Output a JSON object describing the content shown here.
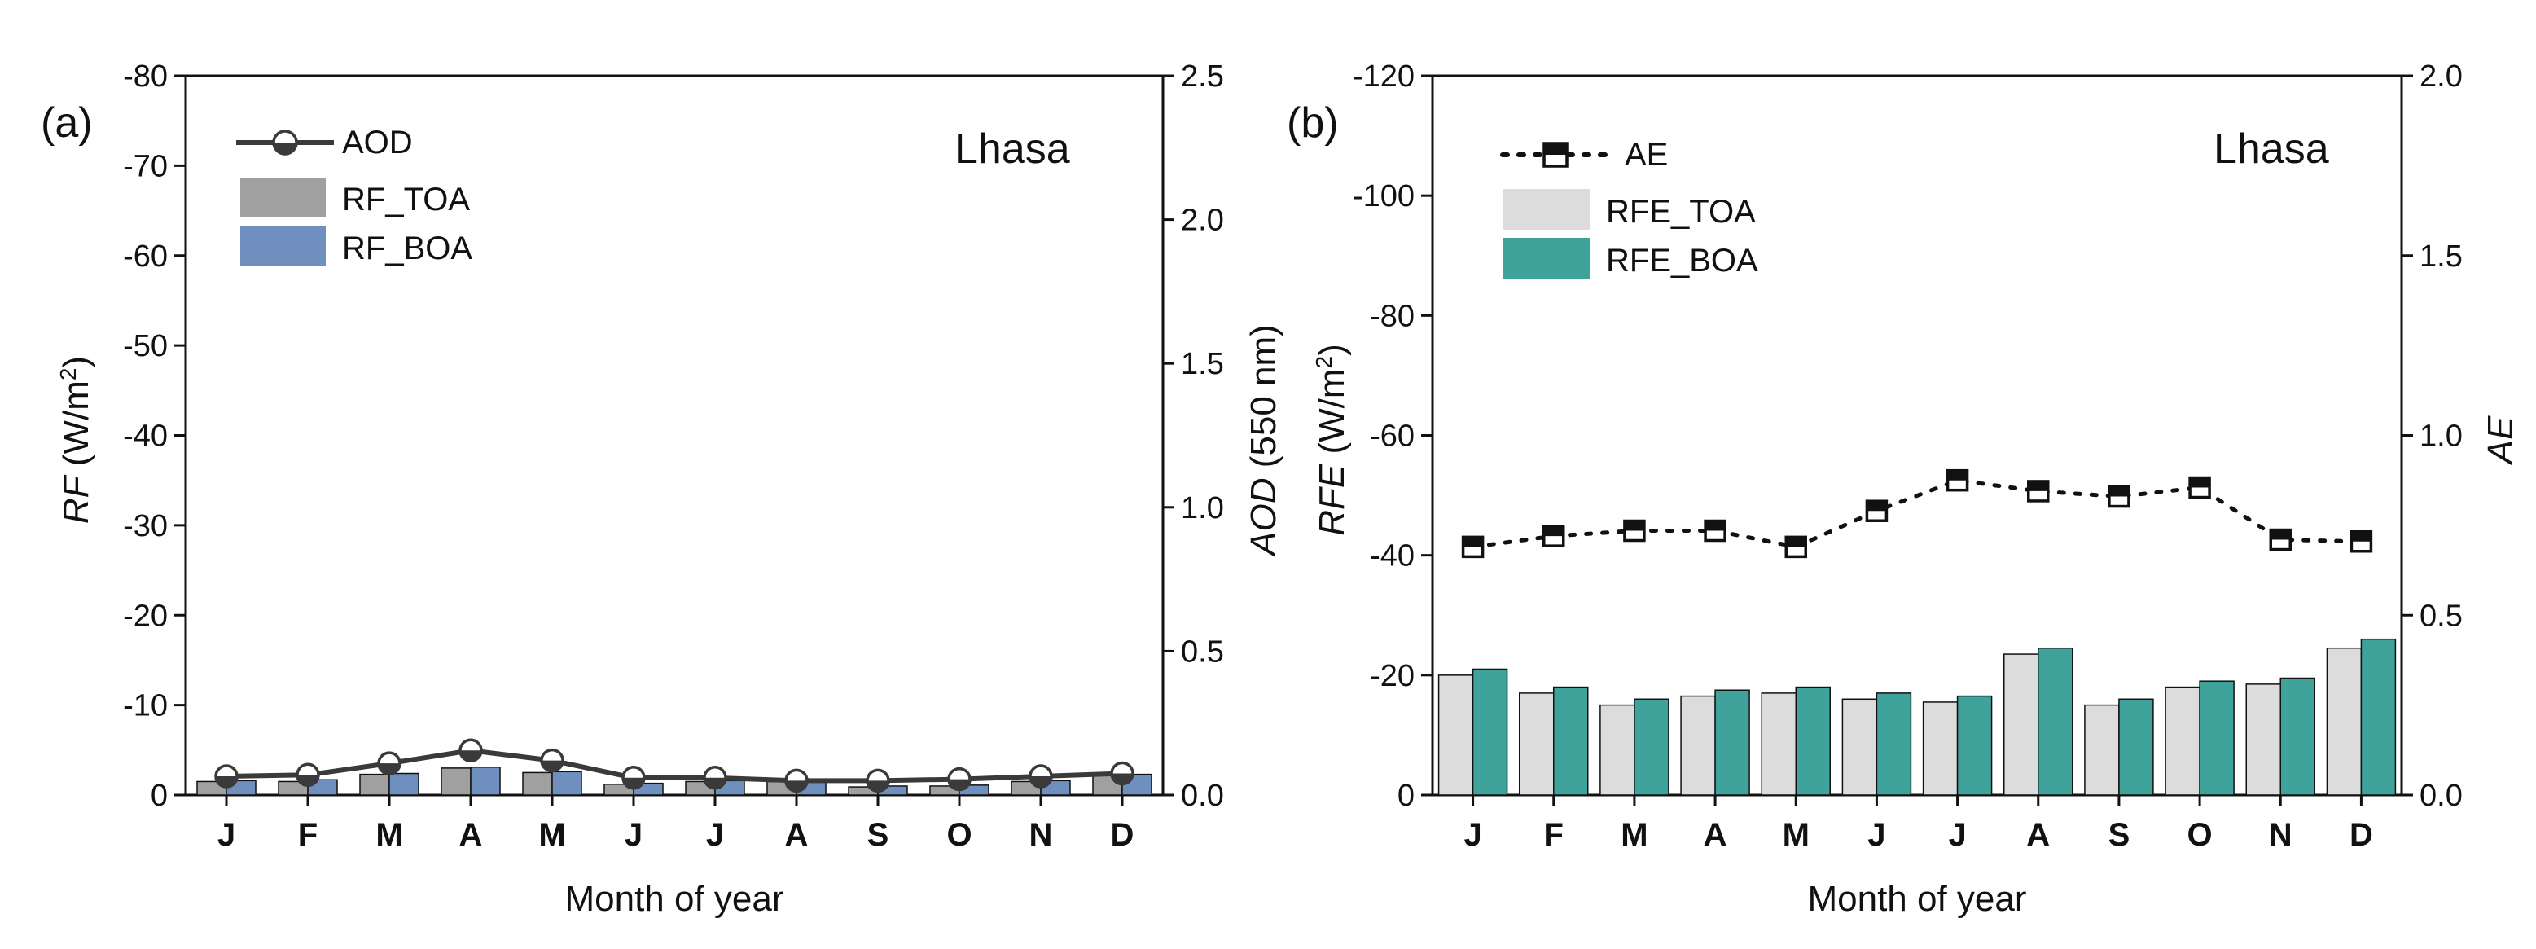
{
  "chart_data": [
    {
      "type": "bar",
      "panel_label": "(a)",
      "site": "Lhasa",
      "categories": [
        "J",
        "F",
        "M",
        "A",
        "M",
        "J",
        "J",
        "A",
        "S",
        "O",
        "N",
        "D"
      ],
      "xlabel": "Month of year",
      "ylabel_left": {
        "italic": "RF",
        "unit": " (W/m",
        "sup": "2",
        "close": ")"
      },
      "ylabel_right": {
        "italic": "AOD",
        "unit": " (550 nm)"
      },
      "ylim_left": [
        0,
        -80
      ],
      "yticks_left": [
        "0",
        "-10",
        "-20",
        "-30",
        "-40",
        "-50",
        "-60",
        "-70",
        "-80"
      ],
      "yticks_left_values": [
        0,
        -10,
        -20,
        -30,
        -40,
        -50,
        -60,
        -70,
        -80
      ],
      "ylim_right": [
        0,
        2.5
      ],
      "yticks_right": [
        "0.0",
        "0.5",
        "1.0",
        "1.5",
        "2.0",
        "2.5"
      ],
      "yticks_right_values": [
        0,
        0.5,
        1.0,
        1.5,
        2.0,
        2.5
      ],
      "series": [
        {
          "name": "RF_TOA",
          "kind": "bar",
          "axis": "left",
          "color": "#a0a0a0",
          "values": [
            -1.5,
            -1.5,
            -2.3,
            -3.0,
            -2.5,
            -1.2,
            -1.5,
            -1.5,
            -0.9,
            -1.0,
            -1.5,
            -2.2
          ]
        },
        {
          "name": "RF_BOA",
          "kind": "bar",
          "axis": "left",
          "color": "#6f8fbf",
          "values": [
            -1.6,
            -1.7,
            -2.4,
            -3.1,
            -2.6,
            -1.3,
            -1.6,
            -1.6,
            -1.0,
            -1.1,
            -1.6,
            -2.3
          ]
        },
        {
          "name": "AOD",
          "kind": "line",
          "axis": "right",
          "color": "#3a3a3a",
          "marker": "half-filled-circle",
          "values": [
            0.065,
            0.07,
            0.11,
            0.155,
            0.12,
            0.06,
            0.06,
            0.05,
            0.05,
            0.055,
            0.065,
            0.075
          ]
        }
      ],
      "legend": [
        "AOD",
        "RF_TOA",
        "RF_BOA"
      ]
    },
    {
      "type": "bar",
      "panel_label": "(b)",
      "site": "Lhasa",
      "categories": [
        "J",
        "F",
        "M",
        "A",
        "M",
        "J",
        "J",
        "A",
        "S",
        "O",
        "N",
        "D"
      ],
      "xlabel": "Month of year",
      "ylabel_left": {
        "italic": "RFE",
        "unit": " (W/m",
        "sup": "2",
        "close": ")"
      },
      "ylabel_right": {
        "italic": "AE",
        "unit": ""
      },
      "ylim_left": [
        0,
        -120
      ],
      "yticks_left": [
        "0",
        "-20",
        "-40",
        "-60",
        "-80",
        "-100",
        "-120"
      ],
      "yticks_left_values": [
        0,
        -20,
        -40,
        -60,
        -80,
        -100,
        -120
      ],
      "ylim_right": [
        0,
        2.0
      ],
      "yticks_right": [
        "0.0",
        "0.5",
        "1.0",
        "1.5",
        "2.0"
      ],
      "yticks_right_values": [
        0,
        0.5,
        1.0,
        1.5,
        2.0
      ],
      "series": [
        {
          "name": "RFE_TOA",
          "kind": "bar",
          "axis": "left",
          "color": "#dcdcdc",
          "values": [
            -20,
            -17,
            -15,
            -16.5,
            -17,
            -16,
            -15.5,
            -23.5,
            -15,
            -18,
            -18.5,
            -24.5
          ]
        },
        {
          "name": "RFE_BOA",
          "kind": "bar",
          "axis": "left",
          "color": "#3fa39c",
          "values": [
            -21,
            -18,
            -16,
            -17.5,
            -18,
            -17,
            -16.5,
            -24.5,
            -16,
            -19,
            -19.5,
            -26
          ]
        },
        {
          "name": "AE",
          "kind": "line",
          "axis": "right",
          "color": "#111111",
          "marker": "half-filled-square",
          "dash": "dotted",
          "values": [
            0.69,
            0.72,
            0.735,
            0.735,
            0.69,
            0.79,
            0.875,
            0.845,
            0.83,
            0.855,
            0.71,
            0.705
          ]
        }
      ],
      "legend": [
        "AE",
        "RFE_TOA",
        "RFE_BOA"
      ]
    }
  ]
}
